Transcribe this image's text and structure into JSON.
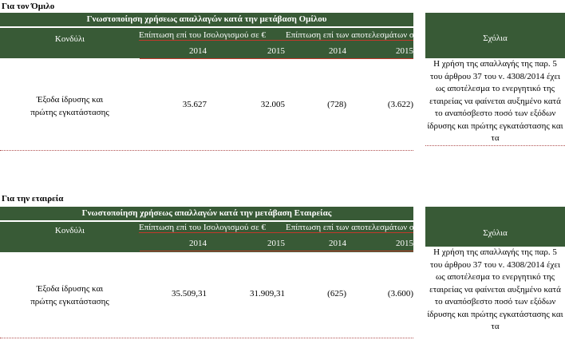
{
  "sections": [
    {
      "label": "Για τον Όμιλο",
      "title": "Γνωστοποίηση χρήσεως απαλλαγών κατά την μετάβαση Ομίλου",
      "col_item": "Κονδύλι",
      "col_impact_bs": "Επίπτωση επί του Ισολογισμού σε €",
      "col_impact_pl": "Επίπτωση επί των αποτελεσμάτων σε",
      "years": [
        "2014",
        "2015",
        "2014",
        "2015"
      ],
      "row": {
        "item": "Έξοδα ίδρυσης και πρώτης εγκατάστασης",
        "values": [
          "35.627",
          "32.005",
          "(728)",
          "(3.622)"
        ]
      },
      "comments_header": "Σχόλια",
      "comments": "Η χρήση της απαλλαγής της παρ. 5 του άρθρου 37 του ν. 4308/2014 έχει ως αποτέλεσμα το ενεργητικό της εταιρείας να φαίνεται αυξημένο κατά το αναπόσβεστο ποσό των εξόδων ίδρυσης και πρώτης εγκατάστασης και τα"
    },
    {
      "label": "Για την εταιρεία",
      "title": "Γνωστοποίηση χρήσεως απαλλαγών κατά την μετάβαση Εταιρείας",
      "col_item": "Κονδύλι",
      "col_impact_bs": "Επίπτωση επί του Ισολογισμού σε €",
      "col_impact_pl": "Επίπτωση επί των αποτελεσμάτων σε",
      "years": [
        "2014",
        "2015",
        "2014",
        "2015"
      ],
      "row": {
        "item": "Έξοδα ίδρυσης και πρώτης εγκατάστασης",
        "values": [
          "35.509,31",
          "31.909,31",
          "(625)",
          "(3.600)"
        ]
      },
      "comments_header": "Σχόλια",
      "comments": "Η χρήση της απαλλαγής της παρ. 5 του άρθρου 37 του ν. 4308/2014 έχει ως αποτέλεσμα το ενεργητικό της εταιρείας να φαίνεται αυξημένο κατά το αναπόσβεστο ποσό των εξόδων ίδρυσης και πρώτης εγκατάστασης και τα"
    }
  ]
}
